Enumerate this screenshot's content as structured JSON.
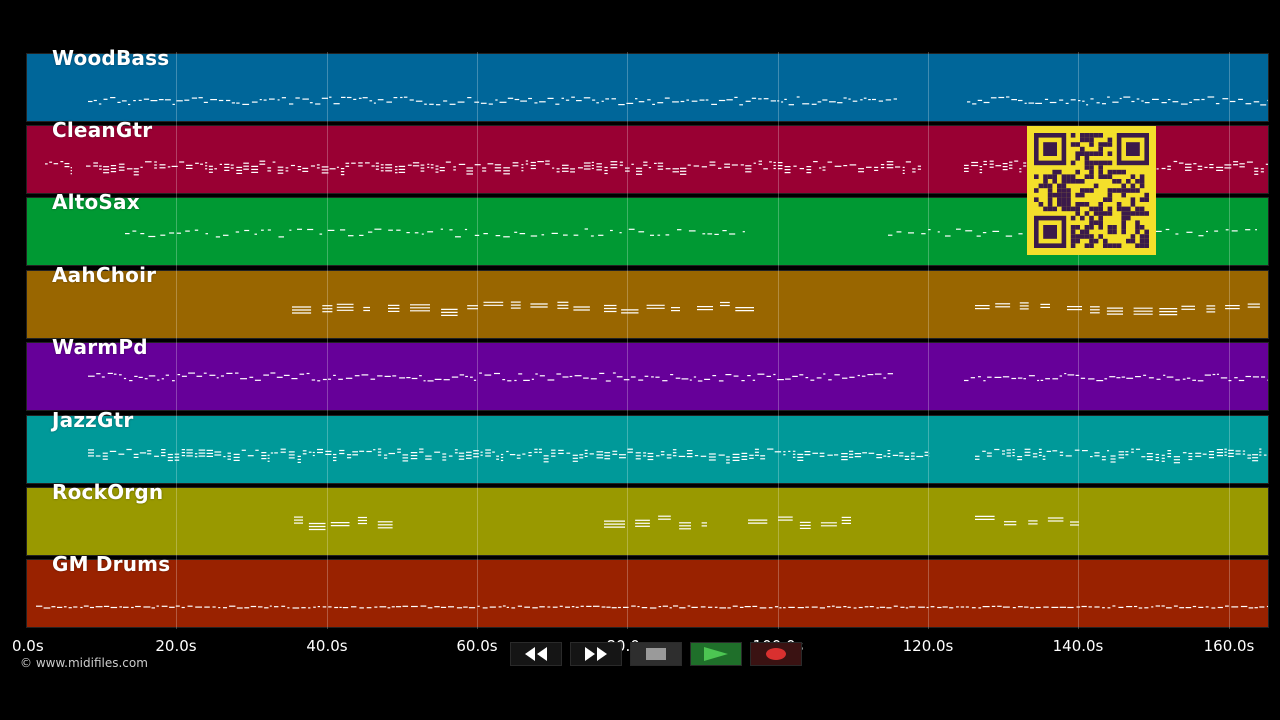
{
  "tracks": [
    {
      "name": "WoodBass",
      "color": "#006699"
    },
    {
      "name": "CleanGtr",
      "color": "#990033"
    },
    {
      "name": "AltoSax",
      "color": "#009933"
    },
    {
      "name": "AahChoir",
      "color": "#996600"
    },
    {
      "name": "WarmPd",
      "color": "#660099"
    },
    {
      "name": "JazzGtr",
      "color": "#009999"
    },
    {
      "name": "RockOrgn",
      "color": "#999900"
    },
    {
      "name": "GM Drums",
      "color": "#992200"
    }
  ],
  "timeline": {
    "ticks": [
      "0.0s",
      "20.0s",
      "40.0s",
      "60.0s",
      "80.0s",
      "100.0s",
      "120.0s",
      "140.0s",
      "160.0s"
    ]
  },
  "footer": {
    "copyright": "© www.midifiles.com"
  },
  "transport": {
    "rewind_icon": "rewind-icon",
    "forward_icon": "fast-forward-icon",
    "stop_icon": "stop-icon",
    "play_icon": "play-icon",
    "record_icon": "record-icon",
    "play_color": "#4cc552",
    "record_color": "#d9302f"
  },
  "overlay": {
    "qr_color": "#f4df2b"
  }
}
